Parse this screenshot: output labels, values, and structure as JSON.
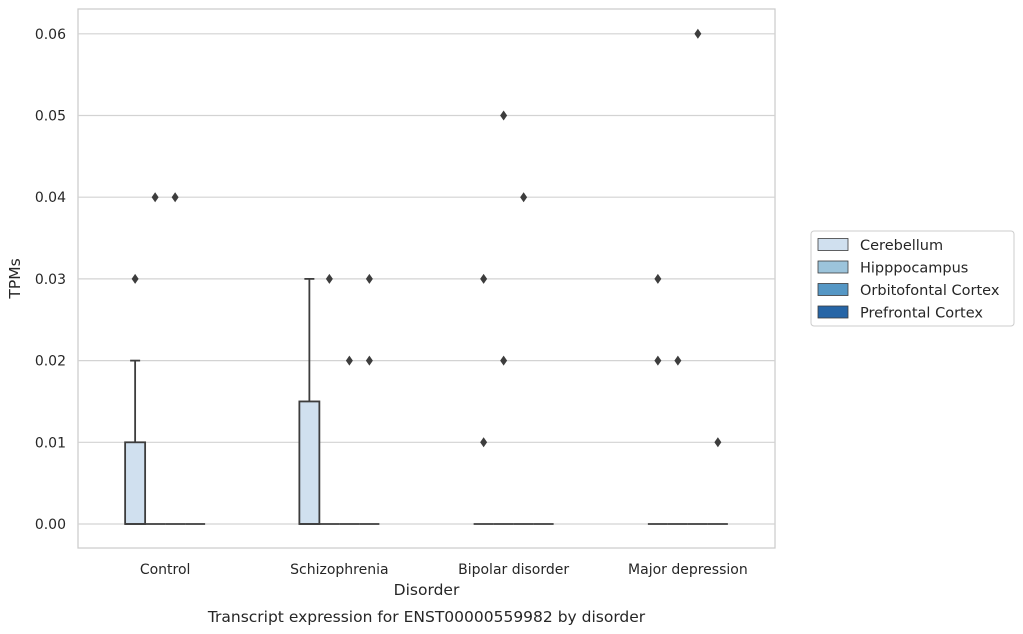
{
  "chart_data": {
    "type": "box",
    "title": "",
    "caption": "Transcript expression for ENST00000559982 by disorder",
    "xlabel": "Disorder",
    "ylabel": "TPMs",
    "ylim": [
      -0.003,
      0.063
    ],
    "yticks": [
      0.0,
      0.01,
      0.02,
      0.03,
      0.04,
      0.05,
      0.06
    ],
    "ytick_labels": [
      "0.00",
      "0.01",
      "0.02",
      "0.03",
      "0.04",
      "0.05",
      "0.06"
    ],
    "grid": "horizontal",
    "legend_position": "right",
    "categories": [
      "Control",
      "Schizophrenia",
      "Bipolar disorder",
      "Major depression"
    ],
    "series": [
      {
        "name": "Cerebellum",
        "color": "#d0e0ef",
        "boxes": [
          {
            "q1": 0.0,
            "median": 0.0,
            "q3": 0.01,
            "whisker_low": 0.0,
            "whisker_high": 0.02,
            "outliers": [
              0.03
            ]
          },
          {
            "q1": 0.0,
            "median": 0.0,
            "q3": 0.015,
            "whisker_low": 0.0,
            "whisker_high": 0.03,
            "outliers": []
          },
          {
            "q1": 0.0,
            "median": 0.0,
            "q3": 0.0,
            "whisker_low": 0.0,
            "whisker_high": 0.0,
            "outliers": [
              0.01,
              0.03
            ]
          },
          {
            "q1": 0.0,
            "median": 0.0,
            "q3": 0.0,
            "whisker_low": 0.0,
            "whisker_high": 0.0,
            "outliers": [
              0.02,
              0.03
            ]
          }
        ]
      },
      {
        "name": "Hipppocampus",
        "color": "#9cc4db",
        "boxes": [
          {
            "q1": 0.0,
            "median": 0.0,
            "q3": 0.0,
            "whisker_low": 0.0,
            "whisker_high": 0.0,
            "outliers": [
              0.04
            ]
          },
          {
            "q1": 0.0,
            "median": 0.0,
            "q3": 0.0,
            "whisker_low": 0.0,
            "whisker_high": 0.0,
            "outliers": [
              0.03
            ]
          },
          {
            "q1": 0.0,
            "median": 0.0,
            "q3": 0.0,
            "whisker_low": 0.0,
            "whisker_high": 0.0,
            "outliers": [
              0.02,
              0.05
            ]
          },
          {
            "q1": 0.0,
            "median": 0.0,
            "q3": 0.0,
            "whisker_low": 0.0,
            "whisker_high": 0.0,
            "outliers": [
              0.02
            ]
          }
        ]
      },
      {
        "name": "Orbitofontal Cortex",
        "color": "#5597c5",
        "boxes": [
          {
            "q1": 0.0,
            "median": 0.0,
            "q3": 0.0,
            "whisker_low": 0.0,
            "whisker_high": 0.0,
            "outliers": [
              0.04
            ]
          },
          {
            "q1": 0.0,
            "median": 0.0,
            "q3": 0.0,
            "whisker_low": 0.0,
            "whisker_high": 0.0,
            "outliers": [
              0.02
            ]
          },
          {
            "q1": 0.0,
            "median": 0.0,
            "q3": 0.0,
            "whisker_low": 0.0,
            "whisker_high": 0.0,
            "outliers": [
              0.04
            ]
          },
          {
            "q1": 0.0,
            "median": 0.0,
            "q3": 0.0,
            "whisker_low": 0.0,
            "whisker_high": 0.0,
            "outliers": [
              0.06
            ]
          }
        ]
      },
      {
        "name": "Prefrontal Cortex",
        "color": "#2665a6",
        "boxes": [
          {
            "q1": 0.0,
            "median": 0.0,
            "q3": 0.0,
            "whisker_low": 0.0,
            "whisker_high": 0.0,
            "outliers": []
          },
          {
            "q1": 0.0,
            "median": 0.0,
            "q3": 0.0,
            "whisker_low": 0.0,
            "whisker_high": 0.0,
            "outliers": [
              0.02,
              0.03
            ]
          },
          {
            "q1": 0.0,
            "median": 0.0,
            "q3": 0.0,
            "whisker_low": 0.0,
            "whisker_high": 0.0,
            "outliers": []
          },
          {
            "q1": 0.0,
            "median": 0.0,
            "q3": 0.0,
            "whisker_low": 0.0,
            "whisker_high": 0.0,
            "outliers": [
              0.01
            ]
          }
        ]
      }
    ]
  }
}
